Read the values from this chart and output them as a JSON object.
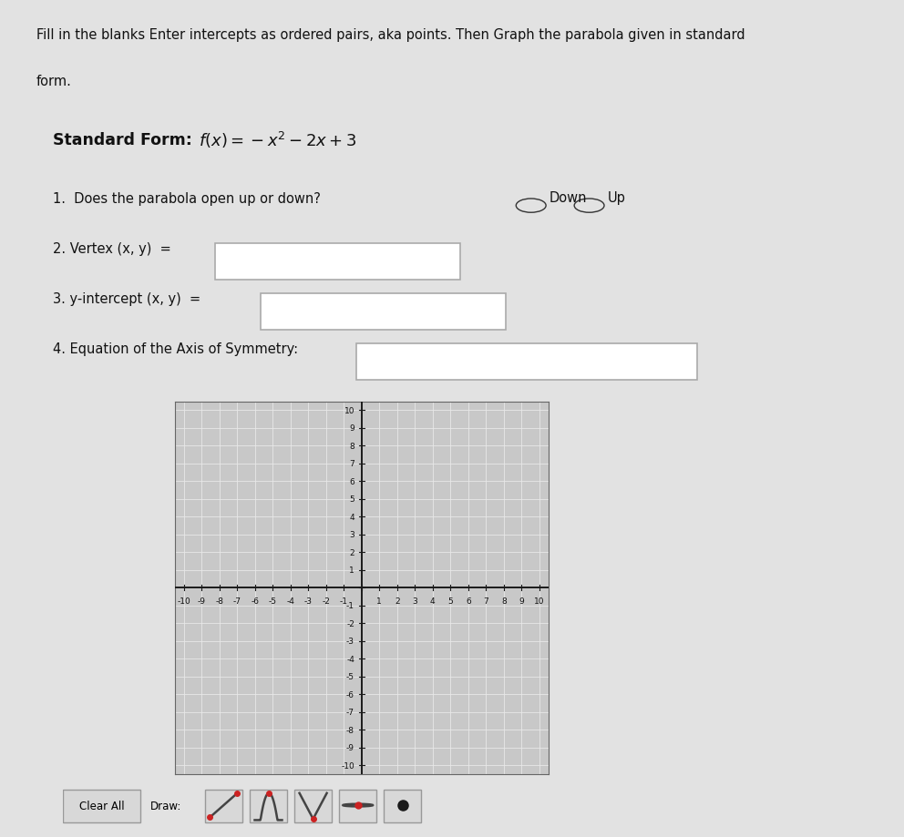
{
  "bg_color": "#e2e2e2",
  "title_line1": "Fill in the blanks Enter intercepts as ordered pairs, aka points. Then Graph the parabola given in standard",
  "title_line2": "form.",
  "std_form_bold": "Standard Form: ",
  "std_form_eq": "$f(x) = -x^2 - 2x + 3$",
  "q1": "1.  Does the parabola open up or down?",
  "q1_down": "Down",
  "q1_up": "Up",
  "q2": "2. Vertex (x, y)  =",
  "q3": "3. y-intercept (x, y)  =",
  "q4": "4. Equation of the Axis of Symmetry:",
  "graph_bg": "#c8c8c8",
  "grid_color": "#b0b0b0",
  "white_grid": "#e8e8e8",
  "axis_color": "#1a1a1a",
  "tick_color": "#111111",
  "text_color": "#111111",
  "box_fill": "#ffffff",
  "box_edge": "#aaaaaa",
  "btn_fill": "#d8d8d8",
  "btn_edge": "#999999"
}
